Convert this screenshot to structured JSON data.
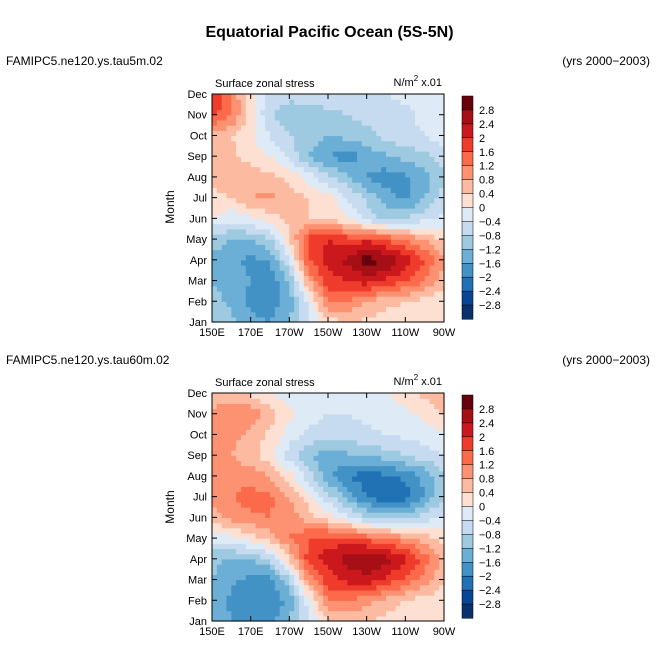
{
  "figure": {
    "title": "Equatorial Pacific Ocean (5S-5N)"
  },
  "chart_data": [
    {
      "type": "heatmap",
      "case": "FAMIPC5.ne120.ys.tau5m.02",
      "years": "(yrs 2000−2003)",
      "title": "Surface zonal stress",
      "units_prefix": "N/m",
      "units_exp": "2",
      "units_suffix": " x.01",
      "xlabel": "",
      "ylabel": "Month",
      "x_ticks": [
        "150E",
        "170E",
        "170W",
        "150W",
        "130W",
        "110W",
        "90W"
      ],
      "y_ticks": [
        "Jan",
        "Feb",
        "Mar",
        "Apr",
        "May",
        "Jun",
        "Jul",
        "Aug",
        "Sep",
        "Oct",
        "Nov",
        "Dec"
      ],
      "xlim": [
        150,
        270
      ],
      "colorbar_levels": [
        "2.8",
        "2.4",
        "2",
        "1.6",
        "1.2",
        "0.8",
        "0.4",
        "0",
        "−0.4",
        "−0.8",
        "−1.2",
        "−1.6",
        "−2",
        "−2.4",
        "−2.8"
      ],
      "colorbar_colors": [
        "#67000d",
        "#a50f15",
        "#cb181d",
        "#ef3b2c",
        "#fb6a4a",
        "#fc9272",
        "#fcbba1",
        "#fee0d2",
        "#deebf7",
        "#c6dbef",
        "#9ecae1",
        "#6baed6",
        "#4292c6",
        "#2171b5",
        "#084594",
        "#08306b"
      ],
      "data": [
        [
          -0.9,
          -1.1,
          -1.5,
          -1.6,
          -1.2,
          -0.5,
          0.2,
          0.4,
          0.3,
          0.2,
          0.2,
          0.1,
          0.0
        ],
        [
          -1.0,
          -1.3,
          -1.7,
          -1.8,
          -1.4,
          -0.3,
          1.3,
          1.2,
          0.8,
          0.5,
          0.4,
          0.2,
          0.1
        ],
        [
          -1.2,
          -1.4,
          -1.6,
          -1.9,
          -1.2,
          0.8,
          1.8,
          2.0,
          2.2,
          1.9,
          1.6,
          1.2,
          0.6
        ],
        [
          -1.3,
          -1.5,
          -1.7,
          -1.6,
          -0.4,
          1.6,
          2.2,
          2.5,
          3.0,
          2.8,
          2.3,
          1.6,
          0.8
        ],
        [
          -1.0,
          -1.2,
          -1.2,
          -0.9,
          0.3,
          1.8,
          2.0,
          1.8,
          1.9,
          1.6,
          1.2,
          0.8,
          0.3
        ],
        [
          0.0,
          -0.3,
          -0.1,
          0.2,
          0.5,
          0.4,
          0.3,
          0.1,
          -0.6,
          -1.0,
          -0.8,
          -0.5,
          -0.3
        ],
        [
          0.3,
          0.4,
          0.8,
          0.9,
          0.6,
          0.4,
          0.2,
          -0.4,
          -0.9,
          -1.4,
          -1.7,
          -1.2,
          -0.6
        ],
        [
          0.5,
          0.6,
          0.7,
          0.5,
          0.3,
          -0.2,
          -0.7,
          -1.1,
          -1.6,
          -1.8,
          -1.7,
          -1.4,
          -0.9
        ],
        [
          0.8,
          0.5,
          0.2,
          0.0,
          -0.5,
          -1.2,
          -1.6,
          -1.8,
          -1.5,
          -1.3,
          -1.1,
          -0.9,
          -0.6
        ],
        [
          0.6,
          0.4,
          0.1,
          -0.4,
          -0.8,
          -1.0,
          -1.2,
          -1.1,
          -0.9,
          -0.7,
          -0.5,
          -0.4,
          -0.2
        ],
        [
          1.8,
          1.2,
          0.2,
          -0.8,
          -1.0,
          -0.9,
          -0.9,
          -0.8,
          -0.7,
          -0.6,
          -0.5,
          -0.3,
          -0.1
        ],
        [
          2.0,
          1.2,
          0.1,
          -0.6,
          -0.7,
          -0.7,
          -0.6,
          -0.6,
          -0.5,
          -0.4,
          -0.3,
          -0.2,
          0.0
        ]
      ]
    },
    {
      "type": "heatmap",
      "case": "FAMIPC5.ne120.ys.tau60m.02",
      "years": "(yrs 2000−2003)",
      "title": "Surface zonal stress",
      "units_prefix": "N/m",
      "units_exp": "2",
      "units_suffix": " x.01",
      "xlabel": "",
      "ylabel": "Month",
      "x_ticks": [
        "150E",
        "170E",
        "170W",
        "150W",
        "130W",
        "110W",
        "90W"
      ],
      "y_ticks": [
        "Jan",
        "Feb",
        "Mar",
        "Apr",
        "May",
        "Jun",
        "Jul",
        "Aug",
        "Sep",
        "Oct",
        "Nov",
        "Dec"
      ],
      "xlim": [
        150,
        270
      ],
      "colorbar_levels": [
        "2.8",
        "2.4",
        "2",
        "1.6",
        "1.2",
        "0.8",
        "0.4",
        "0",
        "−0.4",
        "−0.8",
        "−1.2",
        "−1.6",
        "−2",
        "−2.4",
        "−2.8"
      ],
      "colorbar_colors": [
        "#67000d",
        "#a50f15",
        "#cb181d",
        "#ef3b2c",
        "#fb6a4a",
        "#fc9272",
        "#fcbba1",
        "#fee0d2",
        "#deebf7",
        "#c6dbef",
        "#9ecae1",
        "#6baed6",
        "#4292c6",
        "#2171b5",
        "#084594",
        "#08306b"
      ],
      "data": [
        [
          -1.3,
          -1.6,
          -1.8,
          -1.7,
          -1.2,
          -0.4,
          0.3,
          0.5,
          0.4,
          0.3,
          0.2,
          0.1,
          0.0
        ],
        [
          -1.4,
          -1.7,
          -2.0,
          -1.9,
          -1.5,
          -0.2,
          1.2,
          1.3,
          0.9,
          0.6,
          0.4,
          0.2,
          0.1
        ],
        [
          -1.2,
          -1.5,
          -1.7,
          -1.8,
          -0.9,
          1.0,
          1.8,
          2.1,
          2.2,
          1.9,
          1.5,
          1.0,
          0.5
        ],
        [
          -1.1,
          -1.3,
          -1.2,
          -0.8,
          0.4,
          1.8,
          2.2,
          2.6,
          2.9,
          2.6,
          2.1,
          1.4,
          0.7
        ],
        [
          -0.3,
          -0.1,
          0.2,
          0.6,
          1.2,
          1.6,
          1.8,
          1.7,
          1.5,
          1.3,
          1.0,
          0.6,
          0.3
        ],
        [
          0.6,
          0.9,
          1.1,
          1.2,
          1.0,
          0.6,
          0.2,
          -0.3,
          -0.8,
          -1.0,
          -0.9,
          -0.6,
          -0.3
        ],
        [
          0.9,
          1.2,
          1.4,
          1.3,
          0.8,
          0.2,
          -0.6,
          -1.4,
          -2.0,
          -2.4,
          -2.2,
          -1.6,
          -0.8
        ],
        [
          0.8,
          1.0,
          1.0,
          0.8,
          0.2,
          -0.6,
          -1.5,
          -2.0,
          -2.2,
          -2.1,
          -1.9,
          -1.5,
          -0.9
        ],
        [
          0.9,
          0.8,
          0.6,
          0.1,
          -0.6,
          -1.2,
          -1.4,
          -1.3,
          -1.2,
          -1.0,
          -0.8,
          -0.6,
          -0.4
        ],
        [
          1.0,
          0.9,
          0.7,
          0.3,
          -0.2,
          -0.5,
          -0.6,
          -0.6,
          -0.5,
          -0.4,
          -0.3,
          -0.2,
          -0.1
        ],
        [
          1.0,
          1.2,
          1.1,
          0.6,
          0.1,
          -0.2,
          -0.4,
          -0.4,
          -0.3,
          -0.2,
          -0.1,
          0.1,
          0.4
        ],
        [
          0.4,
          0.5,
          0.3,
          0.0,
          -0.2,
          -0.4,
          -0.3,
          -0.2,
          -0.1,
          0.0,
          0.2,
          0.5,
          0.8
        ]
      ]
    }
  ]
}
